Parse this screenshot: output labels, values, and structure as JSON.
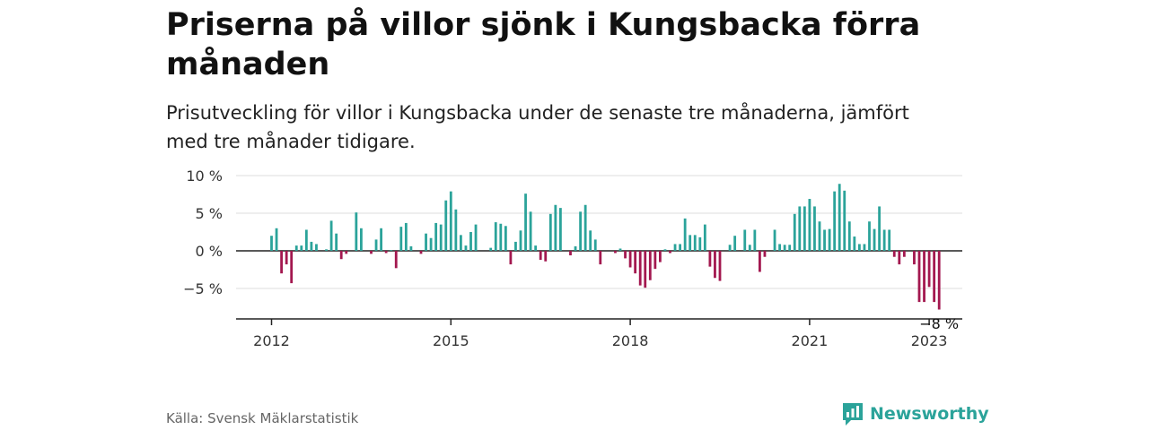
{
  "title": "Priserna på villor sjönk i Kungsbacka förra månaden",
  "subtitle": "Prisutveckling för villor i Kungsbacka under de senaste tre månaderna, jämfört med tre månader tidigare.",
  "source": "Källa: Svensk Mäklarstatistik",
  "brand": "Newsworthy",
  "colors": {
    "positive": "#2ba39a",
    "negative": "#a3184f",
    "brand": "#2ba39a"
  },
  "chart_data": {
    "type": "bar",
    "x_start": "2012-01",
    "x_ticks": [
      "2012",
      "2015",
      "2018",
      "2021",
      "2023"
    ],
    "y_ticks": [
      "10 %",
      "5 %",
      "0 %",
      "−5 %"
    ],
    "ylim": [
      -9,
      10.5
    ],
    "last_value_label": "−8 %",
    "grid": true,
    "values": [
      2,
      3,
      -3,
      -1.8,
      -4.3,
      0.7,
      0.7,
      2.8,
      1.2,
      0.9,
      0,
      0.2,
      4,
      2.3,
      -1.1,
      -0.4,
      0,
      5.1,
      3,
      0,
      -0.4,
      1.5,
      3,
      -0.3,
      0.1,
      -2.3,
      3.2,
      3.7,
      0.6,
      0,
      -0.4,
      2.3,
      1.7,
      3.7,
      3.5,
      6.7,
      7.9,
      5.5,
      2.1,
      0.7,
      2.5,
      3.5,
      0,
      0,
      0.4,
      3.8,
      3.6,
      3.3,
      -1.8,
      1.2,
      2.7,
      7.6,
      5.2,
      0.7,
      -1.2,
      -1.4,
      4.9,
      6.1,
      5.7,
      0,
      -0.6,
      0.6,
      5.2,
      6.1,
      2.7,
      1.5,
      -1.8,
      0,
      0,
      -0.3,
      0.3,
      -1,
      -2.2,
      -3,
      -4.6,
      -4.9,
      -3.9,
      -2.4,
      -1.5,
      0.2,
      -0.3,
      0.9,
      0.9,
      4.3,
      2.1,
      2.1,
      1.8,
      3.5,
      -2.1,
      -3.6,
      -4,
      0,
      0.8,
      2,
      0,
      2.8,
      0.8,
      2.8,
      -2.8,
      -0.8,
      0,
      2.8,
      0.9,
      0.8,
      0.8,
      4.9,
      5.9,
      5.9,
      6.9,
      5.9,
      3.9,
      2.8,
      2.9,
      7.9,
      8.9,
      8,
      3.9,
      1.9,
      0.9,
      0.9,
      3.9,
      2.9,
      5.9,
      2.8,
      2.8,
      -0.8,
      -1.8,
      -0.8,
      0,
      -1.8,
      -6.8,
      -6.8,
      -4.8,
      -6.8,
      -7.8
    ]
  }
}
